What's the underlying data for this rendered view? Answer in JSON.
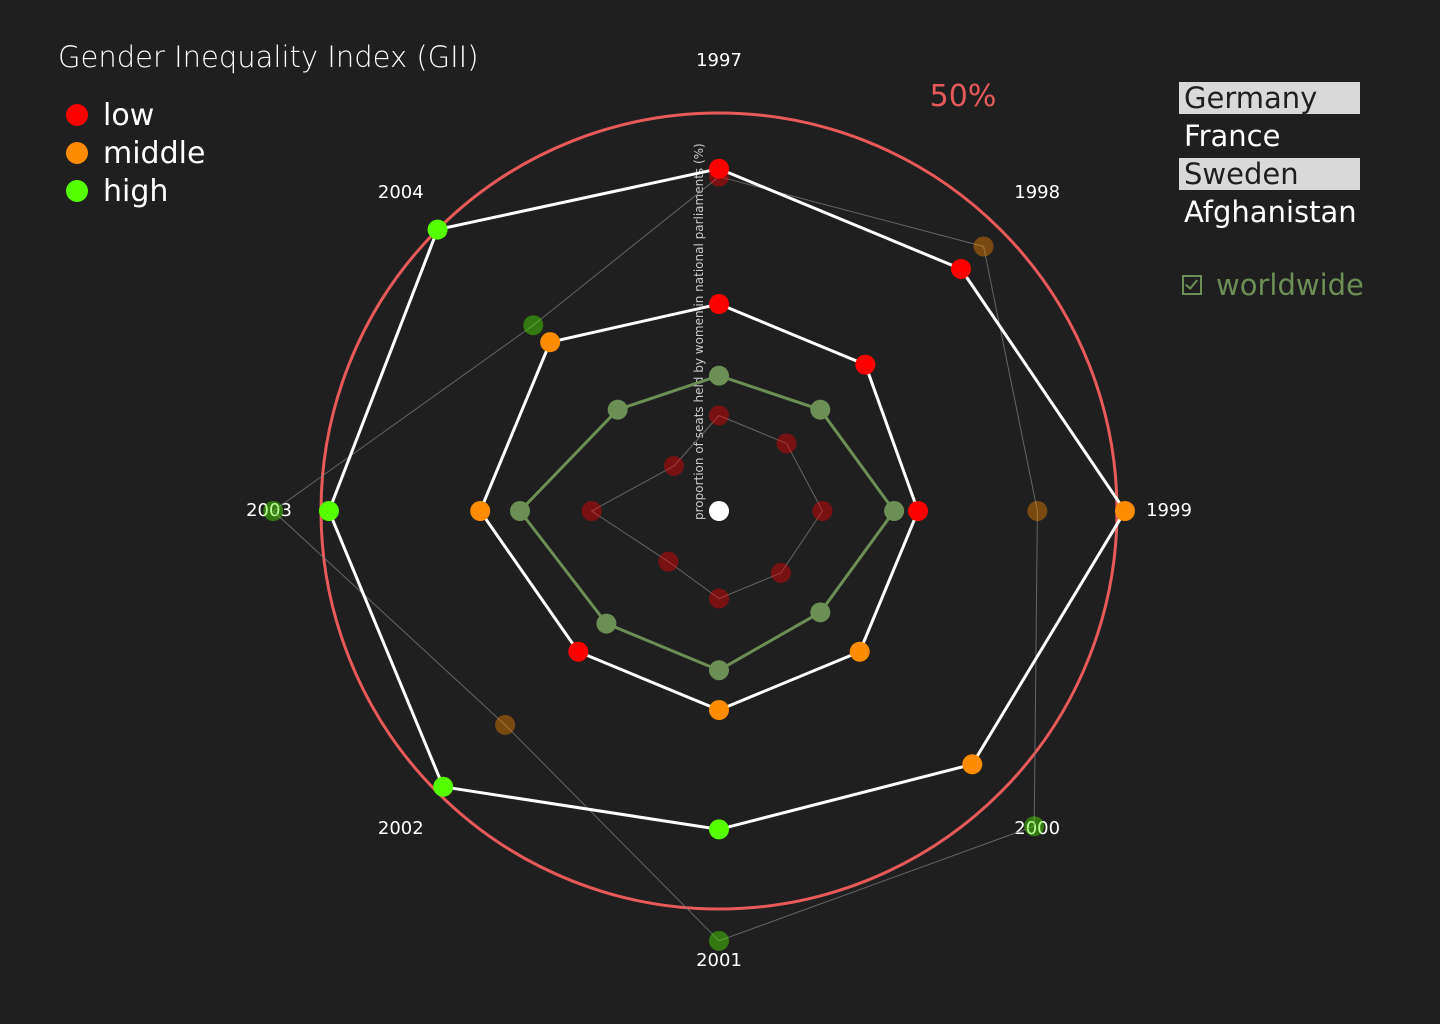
{
  "chart_data": {
    "type": "radar",
    "title": "Gender Inequality Index (GII)",
    "axis_label": "proportion of seats held by women in national parliaments (%)",
    "outer_circle_label": "50%",
    "rmax": 50,
    "years": [
      "1997",
      "1998",
      "1999",
      "2000",
      "2001",
      "2002",
      "2003",
      "2004"
    ],
    "legend": [
      {
        "label": "low",
        "color": "#ff0000"
      },
      {
        "label": "middle",
        "color": "#ff8c00"
      },
      {
        "label": "high",
        "color": "#55ff00"
      }
    ],
    "series": [
      {
        "name": "Sweden",
        "style": "selected",
        "values": [
          43,
          43,
          51,
          45,
          40,
          49,
          49,
          50
        ],
        "levels": [
          "low",
          "low",
          "middle",
          "middle",
          "high",
          "high",
          "high",
          "high"
        ]
      },
      {
        "name": "Germany",
        "style": "selected",
        "values": [
          26,
          26,
          25,
          25,
          25,
          25,
          30,
          30
        ],
        "levels": [
          "low",
          "low",
          "low",
          "middle",
          "middle",
          "low",
          "middle",
          "middle"
        ]
      },
      {
        "name": "worldwide",
        "style": "worldwide",
        "values": [
          17,
          18,
          22,
          18,
          20,
          20,
          25,
          18
        ],
        "levels": []
      },
      {
        "name": "Afghanistan",
        "style": "background",
        "values": [
          42,
          47,
          40,
          56,
          54,
          38,
          56,
          33
        ],
        "levels": [
          "low",
          "middle",
          "middle",
          "high",
          "high",
          "middle",
          "high",
          "high"
        ]
      },
      {
        "name": "France",
        "style": "background",
        "values": [
          12,
          12,
          13,
          11,
          11,
          9,
          16,
          8
        ],
        "levels": [
          "low",
          "low",
          "low",
          "low",
          "low",
          "low",
          "low",
          "low"
        ]
      }
    ],
    "colors": {
      "circle": "#e85a5a",
      "selected_line": "#ffffff",
      "worldwide": "#6b8f55",
      "background_line": "#777777",
      "center": "#ffffff"
    }
  },
  "countries": [
    {
      "name": "Germany",
      "selected": true
    },
    {
      "name": "France",
      "selected": false
    },
    {
      "name": "Sweden",
      "selected": true
    },
    {
      "name": "Afghanistan",
      "selected": false
    }
  ],
  "worldwide_toggle": {
    "label": "worldwide",
    "checked": true,
    "icon": "checkbox-checked-icon"
  }
}
